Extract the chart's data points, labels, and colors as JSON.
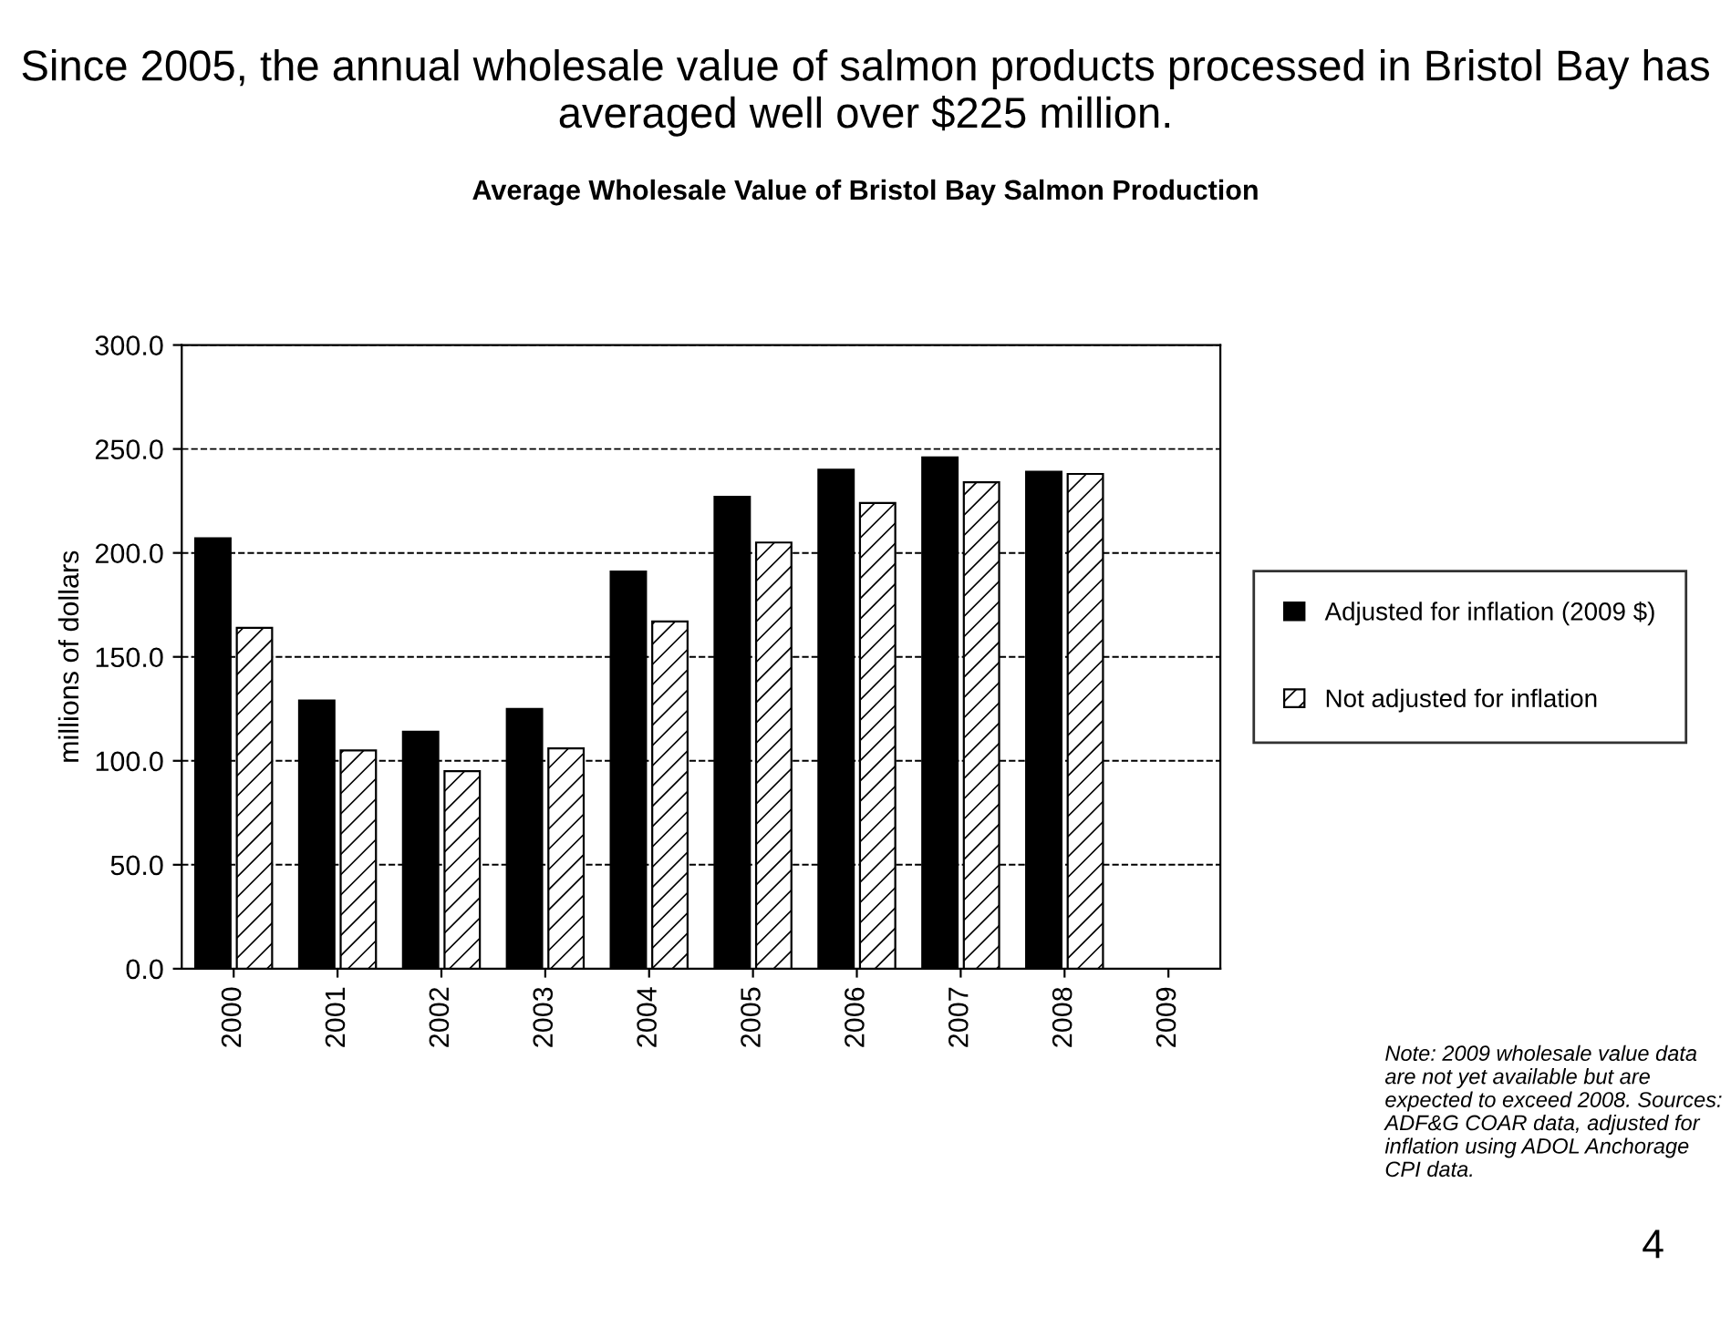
{
  "chart_data": {
    "type": "bar",
    "title": "Since 2005, the annual wholesale value of salmon products processed in Bristol Bay has averaged well over $225 million.",
    "subtitle": "Average Wholesale Value of Bristol Bay Salmon Production",
    "ylabel": "millions of dollars",
    "categories": [
      "2000",
      "2001",
      "2002",
      "2003",
      "2004",
      "2005",
      "2006",
      "2007",
      "2008",
      "2009"
    ],
    "series": [
      {
        "name": "Adjusted for inflation (2009 $)",
        "color": "#000000",
        "values": [
          207,
          129,
          114,
          125,
          191,
          227,
          240,
          246,
          239,
          null
        ]
      },
      {
        "name": "Not adjusted for inflation",
        "color": "#000000",
        "values": [
          164,
          105,
          95,
          106,
          167,
          205,
          224,
          234,
          238,
          null
        ]
      }
    ],
    "ylim": [
      0,
      300
    ],
    "yticks": [
      {
        "value": 0,
        "label": "0.0"
      },
      {
        "value": 50,
        "label": "50.0"
      },
      {
        "value": 100,
        "label": "100.0"
      },
      {
        "value": 150,
        "label": "150.0"
      },
      {
        "value": 200,
        "label": "200.0"
      },
      {
        "value": 250,
        "label": "250.0"
      },
      {
        "value": 300,
        "label": "300.0"
      }
    ],
    "grid": "y",
    "legend": "right",
    "annotations": [
      "Note: 2009 wholesale value data are not yet available but are expected to exceed 2008. Sources: ADF&G COAR data, adjusted for inflation using ADOL Anchorage CPI data.",
      "4"
    ]
  }
}
